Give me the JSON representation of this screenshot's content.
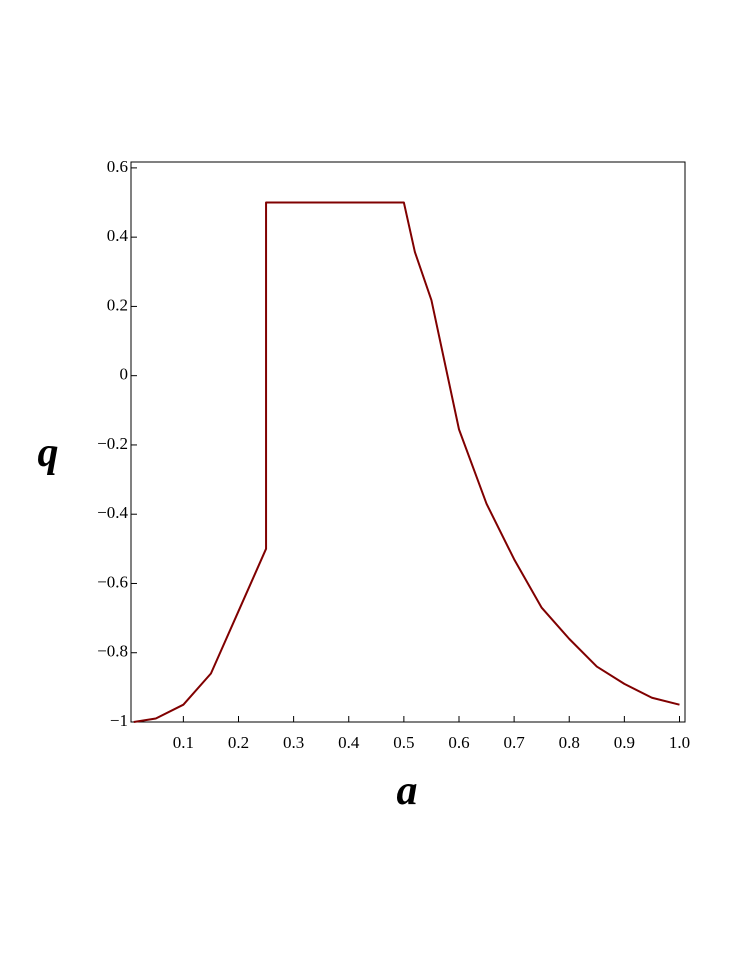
{
  "chart_data": {
    "type": "line",
    "x_label": "a",
    "y_label": "q",
    "x": [
      0.01,
      0.05,
      0.1,
      0.15,
      0.2,
      0.25,
      0.25,
      0.5,
      0.52,
      0.55,
      0.6,
      0.65,
      0.7,
      0.75,
      0.8,
      0.85,
      0.9,
      0.95,
      1.0
    ],
    "series": [
      {
        "color": "#800000",
        "values": [
          -1,
          -0.99,
          -0.95,
          -0.86,
          -0.68,
          -0.5,
          0.5,
          0.5,
          0.357,
          0.218,
          -0.155,
          -0.37,
          -0.53,
          -0.67,
          -0.76,
          -0.84,
          -0.89,
          -0.93,
          -0.95
        ]
      }
    ],
    "xlim": [
      0.005,
      1.01
    ],
    "ylim": [
      -1,
      0.617
    ],
    "xticks": [
      0.1,
      0.2,
      0.3,
      0.4,
      0.5,
      0.6,
      0.7,
      0.8,
      0.9,
      {
        "value": 1.0,
        "label": "1.0"
      }
    ],
    "yticks": [
      {
        "value": -1,
        "label": "−1"
      },
      {
        "value": -0.8,
        "label": "−0.8"
      },
      {
        "value": -0.6,
        "label": "−0.6"
      },
      {
        "value": -0.4,
        "label": "−0.4"
      },
      {
        "value": -0.2,
        "label": "−0.2"
      },
      0,
      0.2,
      0.4,
      0.6
    ]
  }
}
